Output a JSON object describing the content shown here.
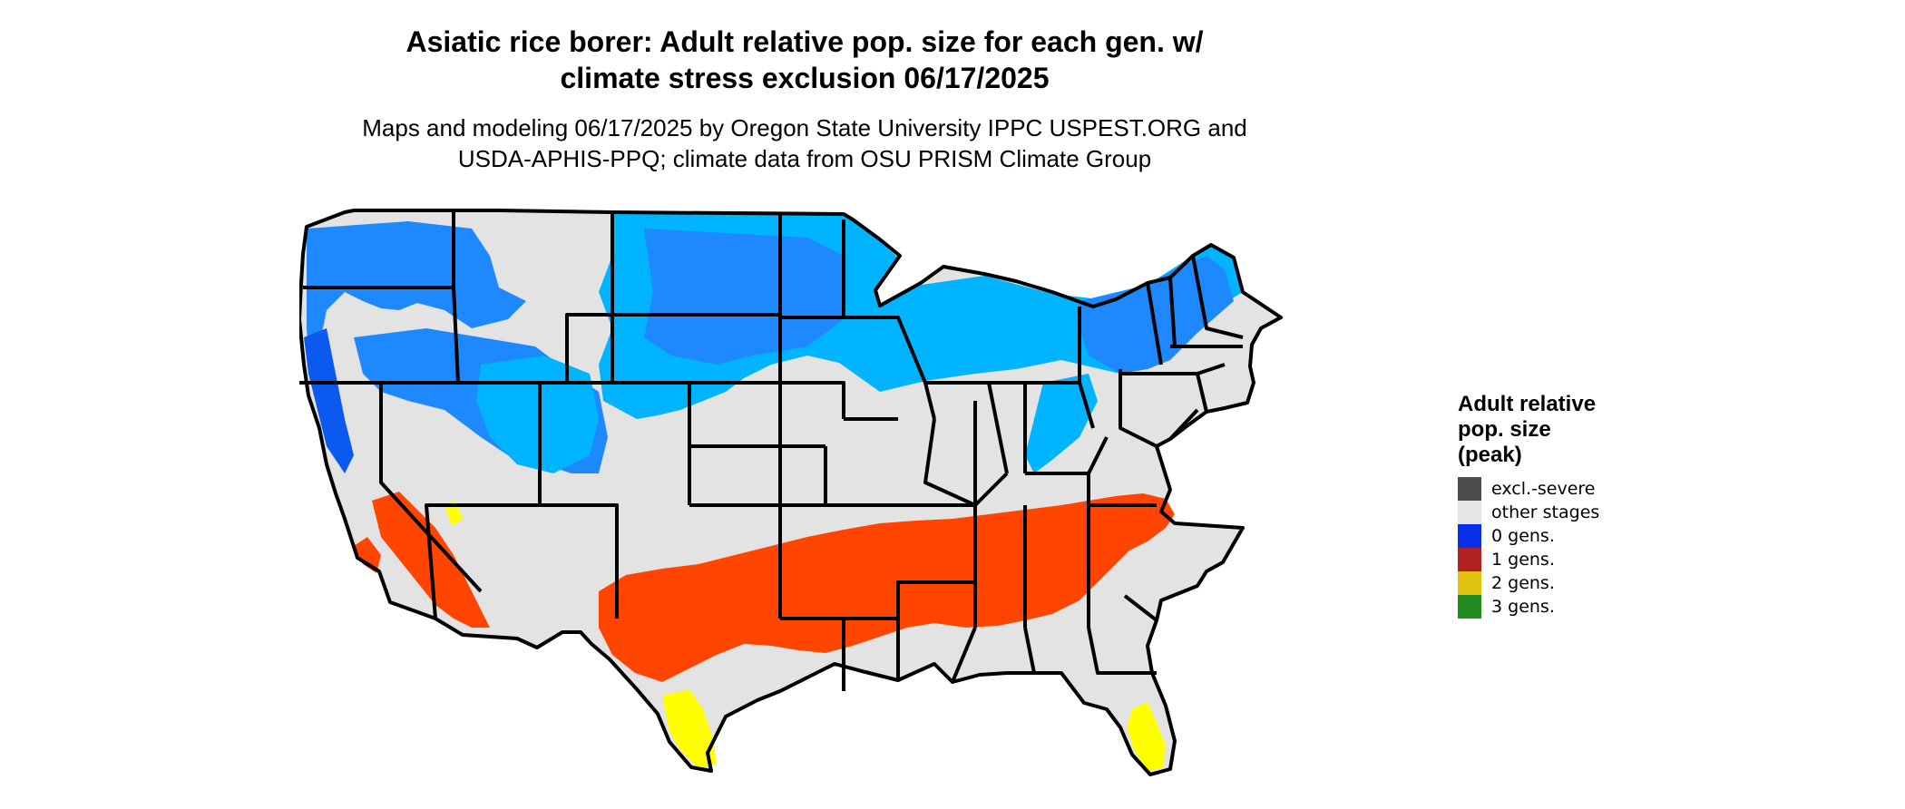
{
  "title_line1": "Asiatic rice borer: Adult relative pop. size for each gen. w/",
  "title_line2": "climate stress exclusion 06/17/2025",
  "subtitle_line1": "Maps and modeling 06/17/2025 by Oregon State University IPPC USPEST.ORG and",
  "subtitle_line2": "USDA-APHIS-PPQ; climate data from OSU PRISM Climate Group",
  "legend": {
    "title_lines": [
      "Adult relative",
      "pop. size",
      "(peak)"
    ],
    "items": [
      {
        "label": "excl.-severe",
        "color": "#4d4d4d"
      },
      {
        "label": "other stages",
        "color": "#e6e6e6"
      },
      {
        "label": "0 gens.",
        "color": "#0a2fe8"
      },
      {
        "label": "1 gens.",
        "color": "#b22222"
      },
      {
        "label": "2 gens.",
        "color": "#e0c20e"
      },
      {
        "label": "3 gens.",
        "color": "#228b22"
      }
    ]
  },
  "map_colors": {
    "land_other": "#e3e3e3",
    "zero_gens_light": "#00b4ff",
    "zero_gens_mid": "#1e88ff",
    "zero_gens_dark": "#0a5af0",
    "one_gen": "#ff4500",
    "two_gens": "#ffff00",
    "borders": "#000000"
  }
}
